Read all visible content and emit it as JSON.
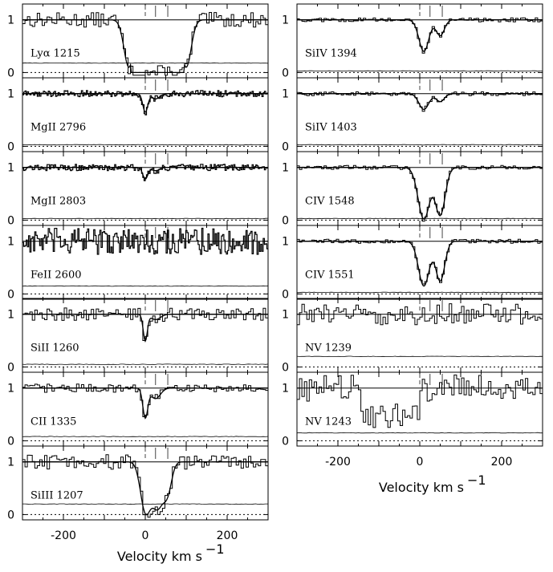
{
  "figure": {
    "xlabel": "Velocity  km  s",
    "xlabel_sup": "−1",
    "colors": {
      "ink": "#000000",
      "background": "#ffffff"
    }
  },
  "chart_data": [
    {
      "type": "line",
      "column": "left",
      "ion": "Lyα 1215",
      "x_ticks": [
        -200,
        0,
        200
      ],
      "xlim": [
        -300,
        300
      ],
      "ylim": [
        -0.1,
        1.3
      ],
      "yticks": [
        0,
        1
      ],
      "component_markers": [
        0,
        25,
        55
      ]
    },
    {
      "type": "line",
      "column": "left",
      "ion": "MgII 2796",
      "x_ticks": [
        -200,
        0,
        200
      ],
      "xlim": [
        -300,
        300
      ],
      "ylim": [
        -0.1,
        1.3
      ],
      "yticks": [
        0,
        1
      ],
      "component_markers": [
        0,
        25,
        55
      ]
    },
    {
      "type": "line",
      "column": "left",
      "ion": "MgII 2803",
      "x_ticks": [
        -200,
        0,
        200
      ],
      "xlim": [
        -300,
        300
      ],
      "ylim": [
        -0.1,
        1.3
      ],
      "yticks": [
        0,
        1
      ],
      "component_markers": [
        0,
        25,
        55
      ]
    },
    {
      "type": "line",
      "column": "left",
      "ion": "FeII 2600",
      "x_ticks": [
        -200,
        0,
        200
      ],
      "xlim": [
        -300,
        300
      ],
      "ylim": [
        -0.1,
        1.3
      ],
      "yticks": [
        0,
        1
      ],
      "component_markers": [
        0,
        25,
        55
      ]
    },
    {
      "type": "line",
      "column": "left",
      "ion": "SiII 1260",
      "x_ticks": [
        -200,
        0,
        200
      ],
      "xlim": [
        -300,
        300
      ],
      "ylim": [
        -0.1,
        1.3
      ],
      "yticks": [
        0,
        1
      ],
      "component_markers": [
        0,
        25,
        55
      ]
    },
    {
      "type": "line",
      "column": "left",
      "ion": "CII 1335",
      "x_ticks": [
        -200,
        0,
        200
      ],
      "xlim": [
        -300,
        300
      ],
      "ylim": [
        -0.1,
        1.3
      ],
      "yticks": [
        0,
        1
      ],
      "component_markers": [
        0,
        25,
        55
      ]
    },
    {
      "type": "line",
      "column": "left",
      "ion": "SiIII 1207",
      "x_ticks": [
        -200,
        0,
        200
      ],
      "xlim": [
        -300,
        300
      ],
      "ylim": [
        -0.1,
        1.3
      ],
      "yticks": [
        0,
        1
      ],
      "component_markers": [
        0,
        25,
        55
      ]
    },
    {
      "type": "line",
      "column": "right",
      "ion": "SiIV 1394",
      "x_ticks": [
        -200,
        0,
        200
      ],
      "xlim": [
        -300,
        300
      ],
      "ylim": [
        -0.1,
        1.3
      ],
      "yticks": [
        0,
        1
      ],
      "component_markers": [
        0,
        25,
        55
      ]
    },
    {
      "type": "line",
      "column": "right",
      "ion": "SiIV 1403",
      "x_ticks": [
        -200,
        0,
        200
      ],
      "xlim": [
        -300,
        300
      ],
      "ylim": [
        -0.1,
        1.3
      ],
      "yticks": [
        0,
        1
      ],
      "component_markers": [
        0,
        25,
        55
      ]
    },
    {
      "type": "line",
      "column": "right",
      "ion": "CIV 1548",
      "x_ticks": [
        -200,
        0,
        200
      ],
      "xlim": [
        -300,
        300
      ],
      "ylim": [
        -0.1,
        1.3
      ],
      "yticks": [
        0,
        1
      ],
      "component_markers": [
        0,
        25,
        55
      ]
    },
    {
      "type": "line",
      "column": "right",
      "ion": "CIV 1551",
      "x_ticks": [
        -200,
        0,
        200
      ],
      "xlim": [
        -300,
        300
      ],
      "ylim": [
        -0.1,
        1.3
      ],
      "yticks": [
        0,
        1
      ],
      "component_markers": [
        0,
        25,
        55
      ]
    },
    {
      "type": "line",
      "column": "right",
      "ion": "NV 1239",
      "x_ticks": [
        -200,
        0,
        200
      ],
      "xlim": [
        -300,
        300
      ],
      "ylim": [
        -0.1,
        1.3
      ],
      "yticks": [
        0,
        1
      ],
      "component_markers": [
        0,
        25,
        55
      ]
    },
    {
      "type": "line",
      "column": "right",
      "ion": "NV 1243",
      "x_ticks": [
        -200,
        0,
        200
      ],
      "xlim": [
        -300,
        300
      ],
      "ylim": [
        -0.1,
        1.3
      ],
      "yticks": [
        0,
        1
      ],
      "component_markers": [
        0,
        25,
        55
      ]
    }
  ]
}
